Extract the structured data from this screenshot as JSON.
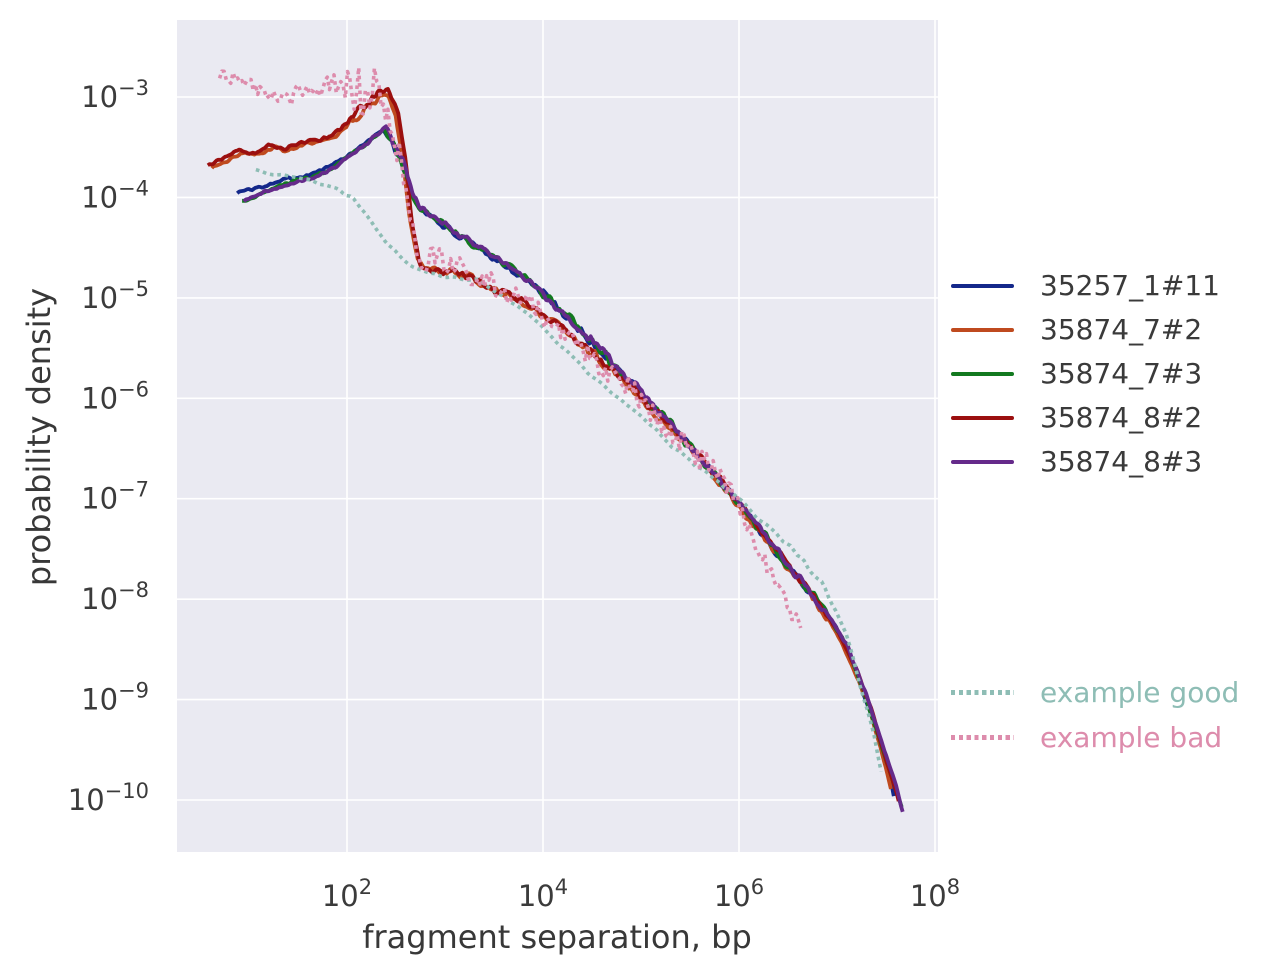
{
  "chart_data": {
    "type": "line",
    "title": "",
    "xlabel": "fragment separation, bp",
    "ylabel": "probability density",
    "xscale": "log",
    "yscale": "log",
    "xlim_log10": [
      0.27,
      8.03
    ],
    "ylim_log10": [
      -10.52,
      -2.23
    ],
    "xtick_exponents": [
      2,
      4,
      6,
      8
    ],
    "ytick_exponents": [
      -3,
      -4,
      -5,
      -6,
      -7,
      -8,
      -9,
      -10
    ],
    "grid": "white major gridlines on lavender panel",
    "panel_color": "#eaeaf2",
    "gridline_color": "#ffffff",
    "legend_position": "outside right",
    "series": [
      {
        "name": "35257_1#11",
        "color": "#14288a",
        "style": "solid",
        "seed": 101,
        "samples": 400,
        "smooth": true,
        "base_noise": 0.02,
        "noise": [
          [
            2.45,
            2.8,
            0.05
          ],
          [
            2.8,
            4.0,
            0.045
          ],
          [
            4.0,
            5.6,
            0.065
          ],
          [
            5.6,
            6.9,
            0.05
          ],
          [
            6.9,
            7.7,
            0.018
          ]
        ],
        "points_log10": [
          [
            0.88,
            -3.95
          ],
          [
            1.1,
            -3.9
          ],
          [
            1.35,
            -3.82
          ],
          [
            1.6,
            -3.78
          ],
          [
            1.8,
            -3.7
          ],
          [
            1.95,
            -3.62
          ],
          [
            2.1,
            -3.52
          ],
          [
            2.25,
            -3.42
          ],
          [
            2.37,
            -3.32
          ],
          [
            2.45,
            -3.45
          ],
          [
            2.55,
            -3.63
          ],
          [
            2.65,
            -3.95
          ],
          [
            2.72,
            -4.08
          ],
          [
            2.9,
            -4.22
          ],
          [
            3.2,
            -4.43
          ],
          [
            3.5,
            -4.6
          ],
          [
            3.8,
            -4.8
          ],
          [
            4.1,
            -5.05
          ],
          [
            4.4,
            -5.35
          ],
          [
            4.8,
            -5.75
          ],
          [
            5.2,
            -6.15
          ],
          [
            5.6,
            -6.6
          ],
          [
            6.0,
            -7.05
          ],
          [
            6.4,
            -7.55
          ],
          [
            6.8,
            -8.02
          ],
          [
            7.0,
            -8.3
          ],
          [
            7.2,
            -8.75
          ],
          [
            7.35,
            -9.15
          ],
          [
            7.5,
            -9.6
          ],
          [
            7.58,
            -9.95
          ]
        ]
      },
      {
        "name": "35874_7#2",
        "color": "#bf4a1f",
        "style": "solid",
        "seed": 202,
        "samples": 400,
        "smooth": true,
        "base_noise": 0.025,
        "noise": [
          [
            2.0,
            2.52,
            0.06
          ],
          [
            2.8,
            4.0,
            0.05
          ],
          [
            4.0,
            5.6,
            0.065
          ],
          [
            5.6,
            6.9,
            0.05
          ],
          [
            6.9,
            7.7,
            0.018
          ]
        ],
        "points_log10": [
          [
            0.62,
            -3.7
          ],
          [
            0.8,
            -3.62
          ],
          [
            0.95,
            -3.55
          ],
          [
            1.1,
            -3.58
          ],
          [
            1.25,
            -3.5
          ],
          [
            1.4,
            -3.54
          ],
          [
            1.55,
            -3.48
          ],
          [
            1.7,
            -3.45
          ],
          [
            1.85,
            -3.42
          ],
          [
            2.0,
            -3.3
          ],
          [
            2.12,
            -3.18
          ],
          [
            2.22,
            -3.08
          ],
          [
            2.32,
            -3.0
          ],
          [
            2.42,
            -2.97
          ],
          [
            2.5,
            -3.2
          ],
          [
            2.58,
            -3.7
          ],
          [
            2.64,
            -4.2
          ],
          [
            2.72,
            -4.6
          ],
          [
            2.8,
            -4.72
          ],
          [
            3.0,
            -4.74
          ],
          [
            3.2,
            -4.78
          ],
          [
            3.45,
            -4.9
          ],
          [
            3.7,
            -5.0
          ],
          [
            4.0,
            -5.18
          ],
          [
            4.3,
            -5.4
          ],
          [
            4.7,
            -5.72
          ],
          [
            5.1,
            -6.1
          ],
          [
            5.5,
            -6.5
          ],
          [
            5.9,
            -6.95
          ],
          [
            6.3,
            -7.45
          ],
          [
            6.7,
            -7.92
          ],
          [
            6.95,
            -8.25
          ],
          [
            7.15,
            -8.65
          ],
          [
            7.3,
            -9.0
          ],
          [
            7.45,
            -9.5
          ],
          [
            7.55,
            -9.88
          ]
        ]
      },
      {
        "name": "35874_7#3",
        "color": "#12791f",
        "style": "solid",
        "seed": 303,
        "samples": 400,
        "smooth": true,
        "base_noise": 0.02,
        "noise": [
          [
            2.45,
            2.8,
            0.05
          ],
          [
            2.8,
            4.0,
            0.045
          ],
          [
            4.0,
            5.6,
            0.065
          ],
          [
            5.6,
            6.9,
            0.05
          ],
          [
            6.9,
            7.7,
            0.018
          ]
        ],
        "points_log10": [
          [
            0.93,
            -4.05
          ],
          [
            1.15,
            -3.95
          ],
          [
            1.4,
            -3.85
          ],
          [
            1.65,
            -3.8
          ],
          [
            1.85,
            -3.72
          ],
          [
            2.0,
            -3.6
          ],
          [
            2.15,
            -3.5
          ],
          [
            2.28,
            -3.4
          ],
          [
            2.38,
            -3.33
          ],
          [
            2.47,
            -3.47
          ],
          [
            2.57,
            -3.66
          ],
          [
            2.66,
            -3.97
          ],
          [
            2.74,
            -4.1
          ],
          [
            2.95,
            -4.25
          ],
          [
            3.25,
            -4.45
          ],
          [
            3.55,
            -4.62
          ],
          [
            3.85,
            -4.83
          ],
          [
            4.15,
            -5.1
          ],
          [
            4.45,
            -5.38
          ],
          [
            4.85,
            -5.8
          ],
          [
            5.25,
            -6.2
          ],
          [
            5.65,
            -6.65
          ],
          [
            6.05,
            -7.1
          ],
          [
            6.45,
            -7.6
          ],
          [
            6.85,
            -8.08
          ],
          [
            7.05,
            -8.38
          ],
          [
            7.25,
            -8.85
          ],
          [
            7.4,
            -9.3
          ],
          [
            7.55,
            -9.75
          ],
          [
            7.66,
            -10.08
          ]
        ]
      },
      {
        "name": "35874_8#2",
        "color": "#9b0f0f",
        "style": "solid",
        "seed": 404,
        "samples": 400,
        "smooth": true,
        "base_noise": 0.025,
        "noise": [
          [
            2.0,
            2.52,
            0.06
          ],
          [
            2.8,
            4.0,
            0.05
          ],
          [
            4.0,
            5.6,
            0.065
          ],
          [
            5.6,
            6.9,
            0.05
          ],
          [
            6.9,
            7.7,
            0.018
          ]
        ],
        "points_log10": [
          [
            0.58,
            -3.68
          ],
          [
            0.75,
            -3.6
          ],
          [
            0.9,
            -3.53
          ],
          [
            1.05,
            -3.57
          ],
          [
            1.2,
            -3.48
          ],
          [
            1.35,
            -3.53
          ],
          [
            1.5,
            -3.46
          ],
          [
            1.65,
            -3.44
          ],
          [
            1.8,
            -3.4
          ],
          [
            1.95,
            -3.3
          ],
          [
            2.08,
            -3.18
          ],
          [
            2.2,
            -3.05
          ],
          [
            2.3,
            -2.95
          ],
          [
            2.42,
            -2.9
          ],
          [
            2.52,
            -3.15
          ],
          [
            2.6,
            -3.65
          ],
          [
            2.66,
            -4.25
          ],
          [
            2.74,
            -4.65
          ],
          [
            2.82,
            -4.74
          ],
          [
            3.05,
            -4.73
          ],
          [
            3.25,
            -4.8
          ],
          [
            3.5,
            -4.92
          ],
          [
            3.75,
            -5.02
          ],
          [
            4.05,
            -5.2
          ],
          [
            4.35,
            -5.42
          ],
          [
            4.75,
            -5.75
          ],
          [
            5.15,
            -6.12
          ],
          [
            5.55,
            -6.52
          ],
          [
            5.95,
            -6.98
          ],
          [
            6.35,
            -7.48
          ],
          [
            6.75,
            -7.95
          ],
          [
            7.0,
            -8.3
          ],
          [
            7.2,
            -8.7
          ],
          [
            7.35,
            -9.1
          ],
          [
            7.5,
            -9.6
          ],
          [
            7.63,
            -10.0
          ]
        ]
      },
      {
        "name": "35874_8#3",
        "color": "#652a8a",
        "style": "solid",
        "seed": 505,
        "samples": 400,
        "smooth": true,
        "base_noise": 0.02,
        "noise": [
          [
            2.45,
            2.8,
            0.05
          ],
          [
            2.8,
            4.0,
            0.045
          ],
          [
            4.0,
            5.6,
            0.065
          ],
          [
            5.6,
            6.9,
            0.05
          ],
          [
            6.9,
            7.7,
            0.018
          ]
        ],
        "points_log10": [
          [
            0.95,
            -4.03
          ],
          [
            1.2,
            -3.93
          ],
          [
            1.45,
            -3.86
          ],
          [
            1.7,
            -3.79
          ],
          [
            1.88,
            -3.7
          ],
          [
            2.03,
            -3.58
          ],
          [
            2.18,
            -3.48
          ],
          [
            2.3,
            -3.38
          ],
          [
            2.4,
            -3.3
          ],
          [
            2.5,
            -3.5
          ],
          [
            2.6,
            -3.7
          ],
          [
            2.68,
            -4.0
          ],
          [
            2.76,
            -4.12
          ],
          [
            3.0,
            -4.28
          ],
          [
            3.3,
            -4.47
          ],
          [
            3.6,
            -4.65
          ],
          [
            3.9,
            -4.86
          ],
          [
            4.2,
            -5.14
          ],
          [
            4.5,
            -5.42
          ],
          [
            4.9,
            -5.84
          ],
          [
            5.3,
            -6.25
          ],
          [
            5.7,
            -6.7
          ],
          [
            6.1,
            -7.15
          ],
          [
            6.5,
            -7.65
          ],
          [
            6.9,
            -8.15
          ],
          [
            7.1,
            -8.45
          ],
          [
            7.3,
            -8.95
          ],
          [
            7.45,
            -9.4
          ],
          [
            7.6,
            -9.85
          ],
          [
            7.67,
            -10.12
          ]
        ]
      },
      {
        "name": "example good",
        "color": "#8ebdb5",
        "style": "dotted",
        "seed": 606,
        "samples": 180,
        "smooth": true,
        "base_noise": 0.022,
        "noise": [
          [
            5.3,
            7.1,
            0.04
          ]
        ],
        "points_log10": [
          [
            1.07,
            -3.74
          ],
          [
            1.35,
            -3.78
          ],
          [
            1.6,
            -3.82
          ],
          [
            1.85,
            -3.9
          ],
          [
            2.05,
            -4.0
          ],
          [
            2.25,
            -4.25
          ],
          [
            2.45,
            -4.5
          ],
          [
            2.65,
            -4.68
          ],
          [
            2.85,
            -4.76
          ],
          [
            3.1,
            -4.8
          ],
          [
            3.35,
            -4.83
          ],
          [
            3.6,
            -4.98
          ],
          [
            3.9,
            -5.2
          ],
          [
            4.2,
            -5.5
          ],
          [
            4.55,
            -5.82
          ],
          [
            4.9,
            -6.1
          ],
          [
            5.3,
            -6.45
          ],
          [
            5.7,
            -6.78
          ],
          [
            6.1,
            -7.1
          ],
          [
            6.5,
            -7.45
          ],
          [
            6.85,
            -7.85
          ],
          [
            7.1,
            -8.35
          ],
          [
            7.25,
            -8.9
          ],
          [
            7.38,
            -9.35
          ],
          [
            7.45,
            -9.72
          ]
        ]
      },
      {
        "name": "example bad",
        "color": "#dd8cac",
        "style": "dotted",
        "seed": 707,
        "samples": 260,
        "smooth": false,
        "base_noise": 0.06,
        "noise": [
          [
            1.4,
            2.0,
            0.12
          ],
          [
            2.0,
            2.55,
            0.3
          ],
          [
            2.55,
            3.2,
            0.12
          ],
          [
            3.2,
            5.0,
            0.11
          ],
          [
            5.0,
            6.0,
            0.13
          ],
          [
            6.0,
            6.65,
            0.08
          ]
        ],
        "points_log10": [
          [
            0.7,
            -2.78
          ],
          [
            0.9,
            -2.83
          ],
          [
            1.1,
            -2.92
          ],
          [
            1.3,
            -3.02
          ],
          [
            1.5,
            -2.98
          ],
          [
            1.7,
            -2.92
          ],
          [
            1.9,
            -2.88
          ],
          [
            2.05,
            -2.95
          ],
          [
            2.2,
            -2.9
          ],
          [
            2.35,
            -2.95
          ],
          [
            2.45,
            -3.2
          ],
          [
            2.55,
            -3.7
          ],
          [
            2.65,
            -4.3
          ],
          [
            2.78,
            -4.65
          ],
          [
            2.95,
            -4.6
          ],
          [
            3.15,
            -4.72
          ],
          [
            3.4,
            -4.82
          ],
          [
            3.65,
            -4.95
          ],
          [
            3.95,
            -5.12
          ],
          [
            4.25,
            -5.4
          ],
          [
            4.6,
            -5.68
          ],
          [
            4.95,
            -5.95
          ],
          [
            5.3,
            -6.3
          ],
          [
            5.65,
            -6.65
          ],
          [
            5.95,
            -6.95
          ],
          [
            6.15,
            -7.4
          ],
          [
            6.35,
            -7.8
          ],
          [
            6.5,
            -8.05
          ],
          [
            6.63,
            -8.32
          ]
        ]
      }
    ]
  }
}
